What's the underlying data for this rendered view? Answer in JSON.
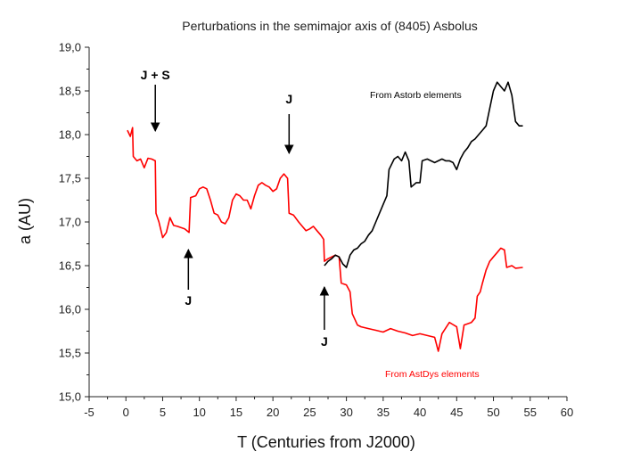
{
  "chart_data": {
    "type": "line",
    "title": "Perturbations in the semimajor axis of (8405) Asbolus",
    "xlabel": "T (Centuries from J2000)",
    "ylabel": "a (AU)",
    "xlim": [
      -5,
      60
    ],
    "ylim": [
      15.0,
      19.0
    ],
    "x_ticks": [
      "-5",
      "0",
      "5",
      "10",
      "15",
      "20",
      "25",
      "30",
      "35",
      "40",
      "45",
      "50",
      "55",
      "60"
    ],
    "y_ticks": [
      "15,0",
      "15,5",
      "16,0",
      "16,5",
      "17,0",
      "17,5",
      "18,0",
      "18,5",
      "19,0"
    ],
    "grid": false,
    "series": [
      {
        "name": "From AstDys elements",
        "color": "#ff0000",
        "points": [
          [
            0.2,
            18.05
          ],
          [
            0.6,
            17.98
          ],
          [
            0.9,
            18.08
          ],
          [
            1.0,
            17.75
          ],
          [
            1.5,
            17.7
          ],
          [
            2.0,
            17.72
          ],
          [
            2.5,
            17.62
          ],
          [
            3.0,
            17.73
          ],
          [
            3.5,
            17.72
          ],
          [
            4.0,
            17.7
          ],
          [
            4.1,
            17.1
          ],
          [
            4.5,
            17.0
          ],
          [
            5.0,
            16.82
          ],
          [
            5.5,
            16.88
          ],
          [
            6.0,
            17.05
          ],
          [
            6.5,
            16.96
          ],
          [
            7.0,
            16.95
          ],
          [
            8.0,
            16.92
          ],
          [
            8.6,
            16.88
          ],
          [
            8.8,
            17.28
          ],
          [
            9.5,
            17.3
          ],
          [
            10.0,
            17.38
          ],
          [
            10.5,
            17.4
          ],
          [
            11.0,
            17.38
          ],
          [
            11.5,
            17.25
          ],
          [
            12.0,
            17.1
          ],
          [
            12.5,
            17.08
          ],
          [
            13.0,
            17.0
          ],
          [
            13.5,
            16.98
          ],
          [
            14.0,
            17.05
          ],
          [
            14.5,
            17.25
          ],
          [
            15.0,
            17.32
          ],
          [
            15.5,
            17.3
          ],
          [
            16.0,
            17.25
          ],
          [
            16.5,
            17.25
          ],
          [
            17.0,
            17.15
          ],
          [
            17.5,
            17.3
          ],
          [
            18.0,
            17.42
          ],
          [
            18.5,
            17.45
          ],
          [
            19.0,
            17.42
          ],
          [
            19.5,
            17.4
          ],
          [
            20.0,
            17.35
          ],
          [
            20.5,
            17.38
          ],
          [
            21.0,
            17.5
          ],
          [
            21.5,
            17.55
          ],
          [
            22.0,
            17.5
          ],
          [
            22.2,
            17.1
          ],
          [
            22.8,
            17.08
          ],
          [
            23.5,
            17.0
          ],
          [
            24.0,
            16.95
          ],
          [
            24.5,
            16.9
          ],
          [
            25.0,
            16.92
          ],
          [
            25.5,
            16.95
          ],
          [
            26.0,
            16.9
          ],
          [
            26.5,
            16.85
          ],
          [
            26.9,
            16.8
          ],
          [
            27.0,
            16.55
          ],
          [
            27.5,
            16.58
          ],
          [
            28.0,
            16.6
          ],
          [
            28.5,
            16.62
          ],
          [
            29.0,
            16.6
          ],
          [
            29.3,
            16.3
          ],
          [
            30.0,
            16.28
          ],
          [
            30.5,
            16.2
          ],
          [
            30.8,
            15.95
          ],
          [
            31.5,
            15.82
          ],
          [
            32.0,
            15.8
          ],
          [
            33.0,
            15.78
          ],
          [
            34.0,
            15.76
          ],
          [
            35.0,
            15.74
          ],
          [
            36.0,
            15.78
          ],
          [
            37.0,
            15.75
          ],
          [
            38.0,
            15.73
          ],
          [
            39.0,
            15.7
          ],
          [
            40.0,
            15.72
          ],
          [
            41.0,
            15.7
          ],
          [
            42.0,
            15.68
          ],
          [
            42.5,
            15.52
          ],
          [
            43.0,
            15.72
          ],
          [
            44.0,
            15.85
          ],
          [
            45.0,
            15.8
          ],
          [
            45.5,
            15.55
          ],
          [
            46.0,
            15.82
          ],
          [
            47.0,
            15.85
          ],
          [
            47.5,
            15.9
          ],
          [
            47.8,
            16.15
          ],
          [
            48.2,
            16.2
          ],
          [
            48.5,
            16.3
          ],
          [
            49.0,
            16.45
          ],
          [
            49.5,
            16.55
          ],
          [
            50.0,
            16.6
          ],
          [
            50.5,
            16.65
          ],
          [
            51.0,
            16.7
          ],
          [
            51.5,
            16.68
          ],
          [
            51.8,
            16.48
          ],
          [
            52.5,
            16.5
          ],
          [
            53.0,
            16.47
          ],
          [
            54.0,
            16.48
          ]
        ]
      },
      {
        "name": "From Astorb elements",
        "color": "#000000",
        "points": [
          [
            27.0,
            16.5
          ],
          [
            27.5,
            16.55
          ],
          [
            28.0,
            16.58
          ],
          [
            28.5,
            16.62
          ],
          [
            29.0,
            16.6
          ],
          [
            29.5,
            16.52
          ],
          [
            30.0,
            16.48
          ],
          [
            30.5,
            16.62
          ],
          [
            31.0,
            16.68
          ],
          [
            31.5,
            16.7
          ],
          [
            32.0,
            16.75
          ],
          [
            32.5,
            16.78
          ],
          [
            33.0,
            16.85
          ],
          [
            33.5,
            16.9
          ],
          [
            34.0,
            17.0
          ],
          [
            34.5,
            17.1
          ],
          [
            35.0,
            17.2
          ],
          [
            35.5,
            17.3
          ],
          [
            35.8,
            17.6
          ],
          [
            36.5,
            17.72
          ],
          [
            37.0,
            17.75
          ],
          [
            37.5,
            17.7
          ],
          [
            38.0,
            17.8
          ],
          [
            38.5,
            17.7
          ],
          [
            38.8,
            17.4
          ],
          [
            39.5,
            17.45
          ],
          [
            40.0,
            17.45
          ],
          [
            40.3,
            17.7
          ],
          [
            41.0,
            17.72
          ],
          [
            41.5,
            17.7
          ],
          [
            42.0,
            17.68
          ],
          [
            42.5,
            17.7
          ],
          [
            43.0,
            17.72
          ],
          [
            43.5,
            17.7
          ],
          [
            44.0,
            17.7
          ],
          [
            44.5,
            17.68
          ],
          [
            45.0,
            17.6
          ],
          [
            45.5,
            17.72
          ],
          [
            46.0,
            17.8
          ],
          [
            46.5,
            17.85
          ],
          [
            47.0,
            17.92
          ],
          [
            47.5,
            17.95
          ],
          [
            48.0,
            18.0
          ],
          [
            48.5,
            18.05
          ],
          [
            49.0,
            18.1
          ],
          [
            49.5,
            18.3
          ],
          [
            50.0,
            18.5
          ],
          [
            50.5,
            18.6
          ],
          [
            51.0,
            18.55
          ],
          [
            51.5,
            18.5
          ],
          [
            52.0,
            18.6
          ],
          [
            52.5,
            18.45
          ],
          [
            53.0,
            18.15
          ],
          [
            53.5,
            18.1
          ],
          [
            54.0,
            18.1
          ]
        ]
      }
    ],
    "legend": [
      {
        "text": "From Astorb elements",
        "color": "#000000"
      },
      {
        "text": "From AstDys elements",
        "color": "#ff0000"
      }
    ],
    "annotations": [
      {
        "text": "J + S",
        "x": 4.0,
        "direction": "down"
      },
      {
        "text": "J",
        "x": 8.5,
        "direction": "up"
      },
      {
        "text": "J",
        "x": 22.2,
        "direction": "down"
      },
      {
        "text": "J",
        "x": 27.0,
        "direction": "up"
      }
    ]
  }
}
